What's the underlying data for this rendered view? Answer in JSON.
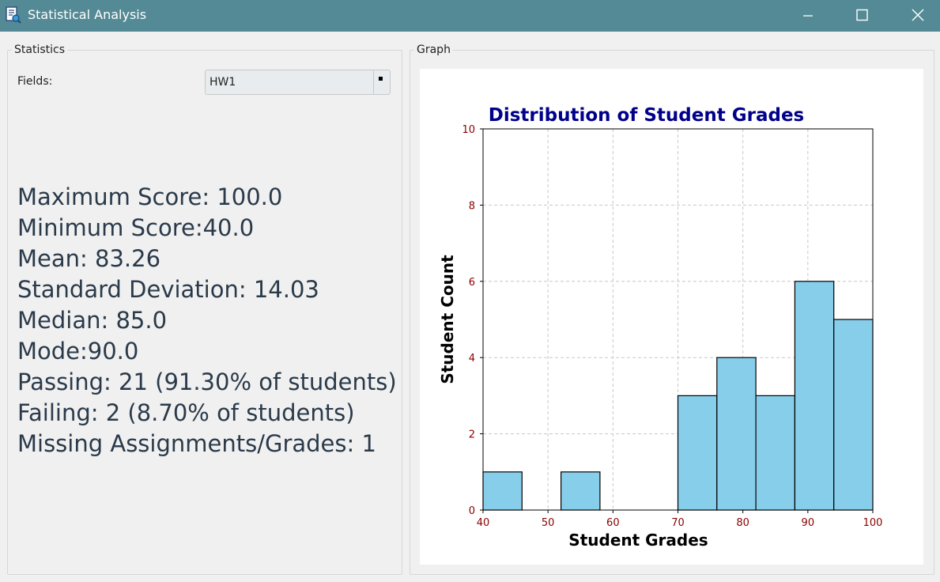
{
  "window": {
    "title": "Statistical Analysis",
    "icon": "app-document-icon",
    "controls": [
      "minimize-icon",
      "maximize-icon",
      "close-icon"
    ]
  },
  "statistics": {
    "group_title": "Statistics",
    "fields_label": "Fields:",
    "fields_value": "HW1",
    "lines": [
      "Maximum Score: 100.0",
      "Minimum Score:40.0",
      "Mean: 83.26",
      "Standard Deviation: 14.03",
      "Median: 85.0",
      "Mode:90.0",
      "Passing: 21 (91.30% of students)",
      "Failing: 2 (8.70% of students)",
      "Missing Assignments/Grades: 1"
    ]
  },
  "graph": {
    "group_title": "Graph"
  },
  "chart_data": {
    "type": "bar",
    "title": "Distribution of Student Grades",
    "xlabel": "Student Grades",
    "ylabel": "Student Count",
    "xlim": [
      40,
      100
    ],
    "ylim": [
      0,
      10
    ],
    "xticks": [
      40,
      50,
      60,
      70,
      80,
      90,
      100
    ],
    "yticks": [
      0,
      2,
      4,
      6,
      8,
      10
    ],
    "bin_edges": [
      40,
      46,
      52,
      58,
      64,
      70,
      76,
      82,
      88,
      94,
      100
    ],
    "values": [
      1,
      0,
      1,
      0,
      0,
      3,
      4,
      3,
      6,
      5
    ],
    "grid": true,
    "colors": {
      "bar_fill": "#87ceeb",
      "bar_edge": "#000000",
      "title": "#00008b",
      "tick_labels": "#8b0000",
      "axis_labels": "#000000",
      "grid": "#c8c8c8"
    }
  }
}
